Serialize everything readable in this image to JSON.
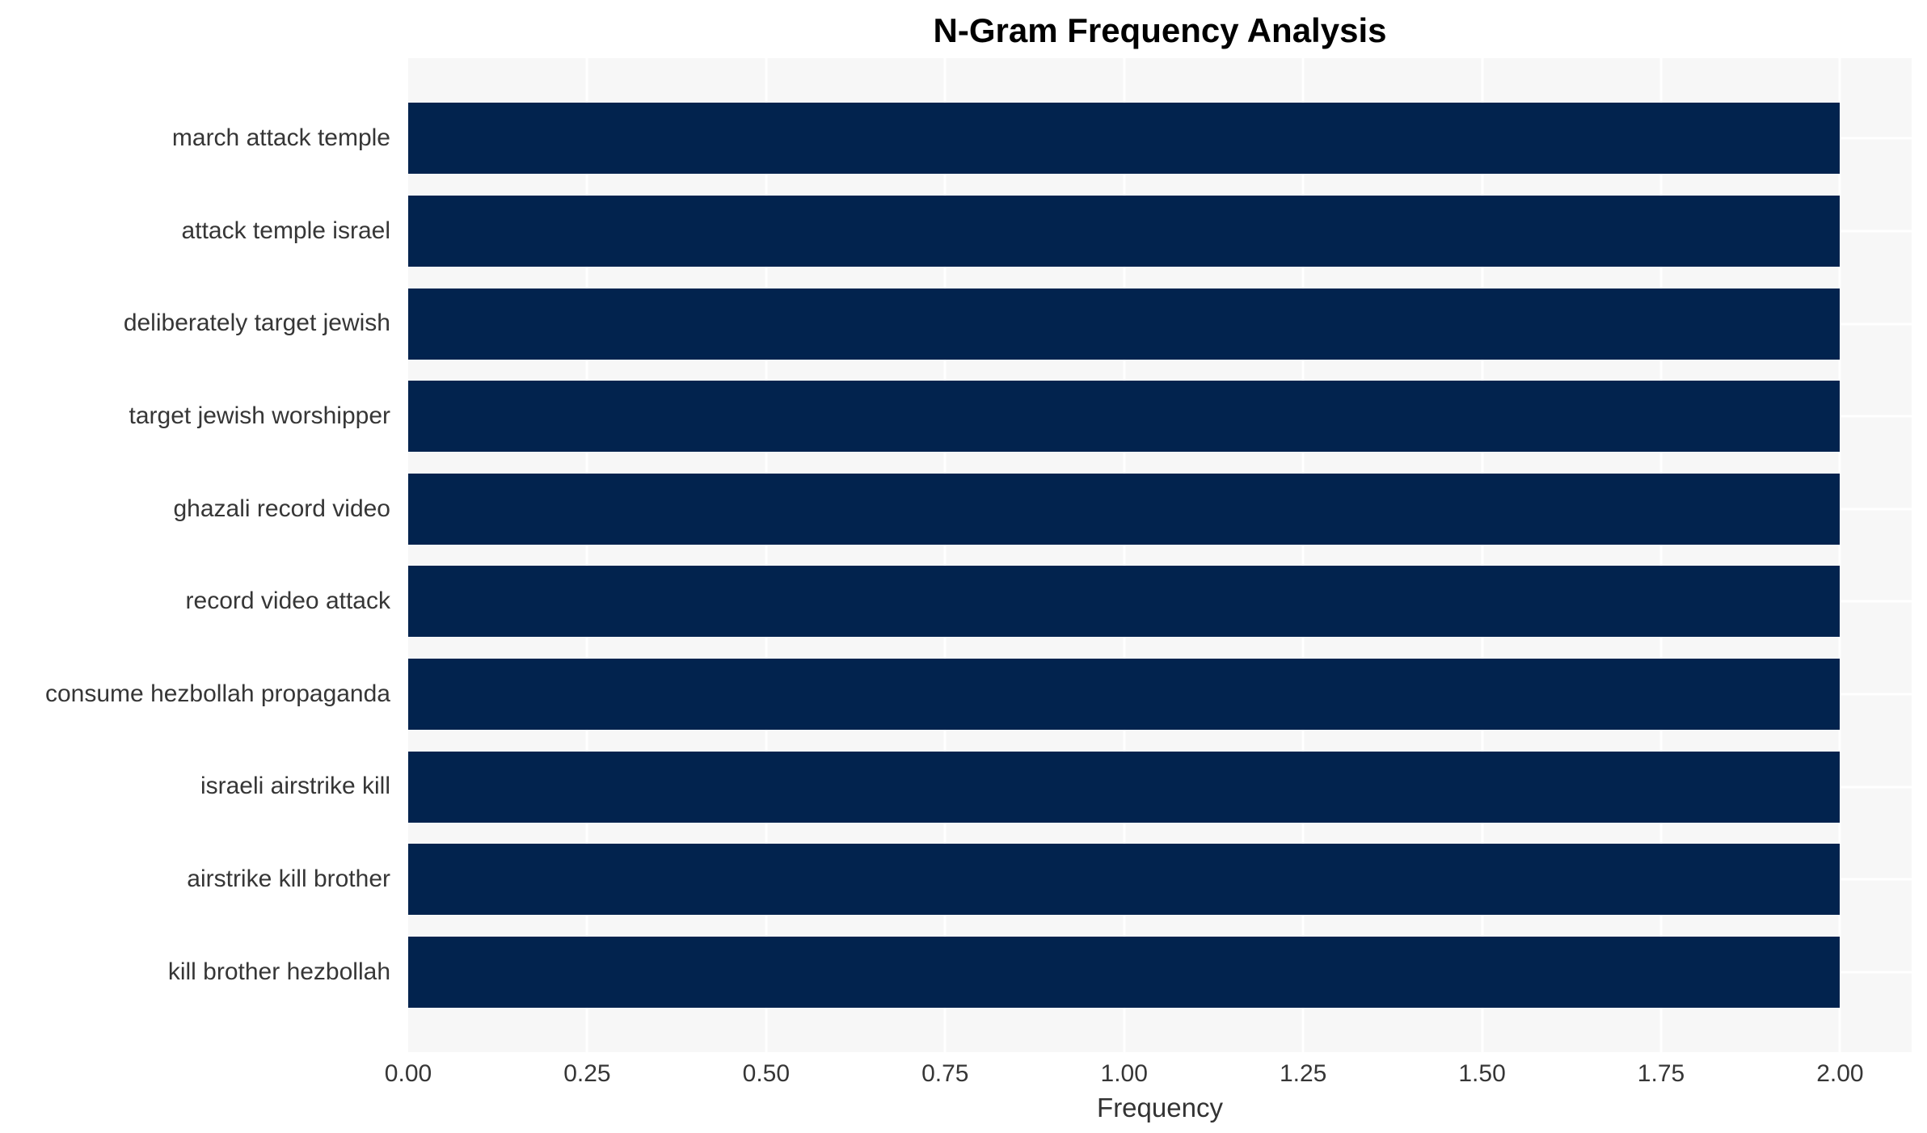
{
  "chart_data": {
    "type": "bar",
    "orientation": "horizontal",
    "title": "N-Gram Frequency Analysis",
    "xlabel": "Frequency",
    "ylabel": "",
    "categories": [
      "march attack temple",
      "attack temple israel",
      "deliberately target jewish",
      "target jewish worshipper",
      "ghazali record video",
      "record video attack",
      "consume hezbollah propaganda",
      "israeli airstrike kill",
      "airstrike kill brother",
      "kill brother hezbollah"
    ],
    "values": [
      2,
      2,
      2,
      2,
      2,
      2,
      2,
      2,
      2,
      2
    ],
    "xlim": [
      0,
      2.1
    ],
    "xticks": [
      0.0,
      0.25,
      0.5,
      0.75,
      1.0,
      1.25,
      1.5,
      1.75,
      2.0
    ],
    "xtick_labels": [
      "0.00",
      "0.25",
      "0.50",
      "0.75",
      "1.00",
      "1.25",
      "1.50",
      "1.75",
      "2.00"
    ],
    "grid": true,
    "legend": false,
    "bar_color": "#02234E",
    "plot_bg_color": "#F7F7F7",
    "grid_color": "#FFFFFF"
  }
}
